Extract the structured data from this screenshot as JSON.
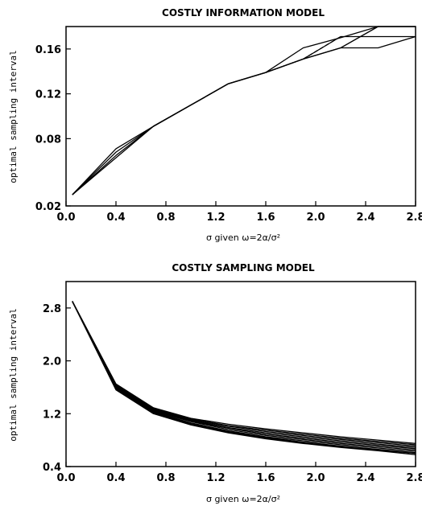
{
  "chart_data": [
    {
      "type": "line",
      "title": "COSTLY INFORMATION MODEL",
      "xlabel": "σ given ω=2α/σ²",
      "ylabel": "optimal sampling interval",
      "xlim": [
        0,
        2.8
      ],
      "ylim": [
        0.02,
        0.18
      ],
      "xticks": [
        "0.0",
        "0.4",
        "0.8",
        "1.2",
        "1.6",
        "2.0",
        "2.4",
        "2.8"
      ],
      "yticks": [
        "0.02",
        "0.08",
        "0.12",
        "0.16"
      ],
      "ytick_values": [
        0.02,
        0.08,
        0.12,
        0.16
      ],
      "grid": false,
      "series": [
        {
          "x": [
            0.05,
            0.4,
            0.7,
            1.0,
            1.3,
            1.6,
            1.9,
            2.2,
            2.5,
            2.8
          ],
          "y": [
            0.03,
            0.071,
            0.091,
            0.11,
            0.129,
            0.139,
            0.161,
            0.17,
            0.18,
            0.18
          ]
        },
        {
          "x": [
            0.05,
            0.4,
            0.7,
            1.0,
            1.3,
            1.6,
            1.9,
            2.2,
            2.5,
            2.8
          ],
          "y": [
            0.03,
            0.063,
            0.091,
            0.11,
            0.129,
            0.139,
            0.151,
            0.161,
            0.161,
            0.171
          ]
        },
        {
          "x": [
            0.05,
            0.4,
            0.7,
            1.0,
            1.3,
            1.6,
            1.9,
            2.2,
            2.5,
            2.8
          ],
          "y": [
            0.03,
            0.068,
            0.091,
            0.11,
            0.129,
            0.139,
            0.151,
            0.171,
            0.171,
            0.171
          ]
        },
        {
          "x": [
            0.05,
            0.4,
            0.7,
            1.0,
            1.3,
            1.6,
            1.9,
            2.2,
            2.5,
            2.8
          ],
          "y": [
            0.03,
            0.065,
            0.091,
            0.11,
            0.129,
            0.139,
            0.151,
            0.161,
            0.18,
            0.18
          ]
        },
        {
          "x": [
            1.9,
            2.2
          ],
          "y": [
            0.151,
            0.171
          ],
          "dashed": true
        }
      ]
    },
    {
      "type": "line",
      "title": "COSTLY SAMPLING MODEL",
      "xlabel": "σ given ω=2α/σ²",
      "ylabel": "optimal sampling interval",
      "xlim": [
        0,
        2.8
      ],
      "ylim": [
        0.4,
        3.2
      ],
      "xticks": [
        "0.0",
        "0.4",
        "0.8",
        "1.2",
        "1.6",
        "2.0",
        "2.4",
        "2.8"
      ],
      "yticks": [
        "0.4",
        "1.2",
        "2.0",
        "2.8"
      ],
      "ytick_values": [
        0.4,
        1.2,
        2.0,
        2.8
      ],
      "grid": false,
      "series": [
        {
          "x": [
            0.05,
            0.4,
            0.7,
            1.0,
            1.3,
            1.6,
            1.9,
            2.2,
            2.5,
            2.8
          ],
          "y": [
            2.9,
            1.65,
            1.29,
            1.13,
            1.04,
            0.97,
            0.91,
            0.85,
            0.8,
            0.75
          ]
        },
        {
          "x": [
            0.05,
            0.4,
            0.7,
            1.0,
            1.3,
            1.6,
            1.9,
            2.2,
            2.5,
            2.8
          ],
          "y": [
            2.9,
            1.64,
            1.28,
            1.12,
            1.02,
            0.95,
            0.89,
            0.83,
            0.78,
            0.73
          ]
        },
        {
          "x": [
            0.05,
            0.4,
            0.7,
            1.0,
            1.3,
            1.6,
            1.9,
            2.2,
            2.5,
            2.8
          ],
          "y": [
            2.9,
            1.63,
            1.27,
            1.11,
            1.01,
            0.93,
            0.87,
            0.81,
            0.76,
            0.71
          ]
        },
        {
          "x": [
            0.05,
            0.4,
            0.7,
            1.0,
            1.3,
            1.6,
            1.9,
            2.2,
            2.5,
            2.8
          ],
          "y": [
            2.9,
            1.62,
            1.26,
            1.1,
            0.99,
            0.91,
            0.85,
            0.79,
            0.74,
            0.69
          ]
        },
        {
          "x": [
            0.05,
            0.4,
            0.7,
            1.0,
            1.3,
            1.6,
            1.9,
            2.2,
            2.5,
            2.8
          ],
          "y": [
            2.9,
            1.61,
            1.25,
            1.09,
            0.98,
            0.89,
            0.83,
            0.77,
            0.72,
            0.67
          ]
        },
        {
          "x": [
            0.05,
            0.4,
            0.7,
            1.0,
            1.3,
            1.6,
            1.9,
            2.2,
            2.5,
            2.8
          ],
          "y": [
            2.9,
            1.6,
            1.24,
            1.08,
            0.96,
            0.87,
            0.81,
            0.75,
            0.7,
            0.65
          ]
        },
        {
          "x": [
            0.05,
            0.4,
            0.7,
            1.0,
            1.3,
            1.6,
            1.9,
            2.2,
            2.5,
            2.8
          ],
          "y": [
            2.9,
            1.59,
            1.23,
            1.06,
            0.94,
            0.85,
            0.79,
            0.73,
            0.68,
            0.63
          ]
        },
        {
          "x": [
            0.05,
            0.4,
            0.7,
            1.0,
            1.3,
            1.6,
            1.9,
            2.2,
            2.5,
            2.8
          ],
          "y": [
            2.9,
            1.58,
            1.22,
            1.05,
            0.93,
            0.84,
            0.77,
            0.71,
            0.66,
            0.61
          ]
        },
        {
          "x": [
            0.05,
            0.4,
            0.7,
            1.0,
            1.3,
            1.6,
            1.9,
            2.2,
            2.5,
            2.8
          ],
          "y": [
            2.9,
            1.57,
            1.21,
            1.04,
            0.92,
            0.83,
            0.76,
            0.7,
            0.65,
            0.6
          ]
        },
        {
          "x": [
            0.05,
            0.4,
            0.7,
            1.0,
            1.3,
            1.6,
            1.9,
            2.2,
            2.5,
            2.8
          ],
          "y": [
            2.9,
            1.56,
            1.2,
            1.03,
            0.91,
            0.82,
            0.75,
            0.69,
            0.64,
            0.58
          ]
        }
      ]
    }
  ]
}
